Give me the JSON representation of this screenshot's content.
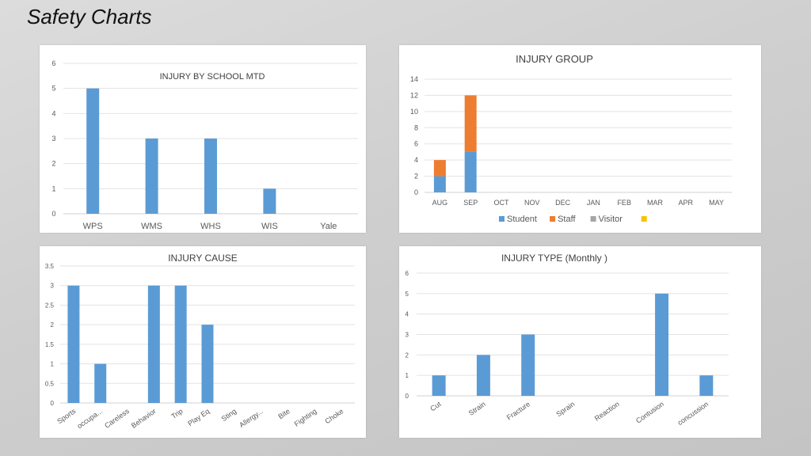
{
  "page": {
    "title": "Safety Charts"
  },
  "chart_data": [
    {
      "type": "bar",
      "title": "INJURY BY SCHOOL MTD",
      "categories": [
        "WPS",
        "WMS",
        "WHS",
        "WIS",
        "Yale"
      ],
      "values": [
        5,
        3,
        3,
        1,
        0
      ],
      "ylim": [
        0,
        6
      ],
      "yticks": [
        "0",
        "1",
        "2",
        "3",
        "4",
        "5",
        "6"
      ],
      "grid": true,
      "color": "#5b9bd5"
    },
    {
      "type": "bar",
      "stacked": true,
      "title": "INJURY GROUP",
      "categories": [
        "AUG",
        "SEP",
        "OCT",
        "NOV",
        "DEC",
        "JAN",
        "FEB",
        "MAR",
        "APR",
        "MAY"
      ],
      "series": [
        {
          "name": "Student",
          "color": "#5b9bd5",
          "values": [
            2,
            5,
            0,
            0,
            0,
            0,
            0,
            0,
            0,
            0
          ]
        },
        {
          "name": "Staff",
          "color": "#ed7d31",
          "values": [
            2,
            7,
            0,
            0,
            0,
            0,
            0,
            0,
            0,
            0
          ]
        },
        {
          "name": "Visitor",
          "color": "#a5a5a5",
          "values": [
            0,
            0,
            0,
            0,
            0,
            0,
            0,
            0,
            0,
            0
          ]
        },
        {
          "name": "",
          "color": "#ffc000",
          "values": [
            0,
            0,
            0,
            0,
            0,
            0,
            0,
            0,
            0,
            0
          ]
        }
      ],
      "ylim": [
        0,
        14
      ],
      "yticks": [
        "0",
        "2",
        "4",
        "6",
        "8",
        "10",
        "12",
        "14"
      ],
      "legend": "bottom",
      "grid": true
    },
    {
      "type": "bar",
      "title": "INJURY CAUSE",
      "categories": [
        "Sports",
        "occupa...",
        "Careless",
        "Behavior",
        "Trip",
        "Play Eq",
        "Sting",
        "Allergy...",
        "Bite",
        "Fighting",
        "Choke"
      ],
      "values": [
        3,
        1,
        0,
        3,
        3,
        2,
        0,
        0,
        0,
        0,
        0
      ],
      "ylim": [
        0,
        3.5
      ],
      "yticks": [
        "0",
        "0.5",
        "1",
        "1.5",
        "2",
        "2.5",
        "3",
        "3.5"
      ],
      "grid": true,
      "color": "#5b9bd5"
    },
    {
      "type": "bar",
      "title": "INJURY TYPE (Monthly )",
      "categories": [
        "Cut",
        "Strain",
        "Fracture",
        "Sprain",
        "Reaction",
        "Contusion",
        "concussion"
      ],
      "values": [
        1,
        2,
        3,
        0,
        0,
        5,
        1
      ],
      "ylim": [
        0,
        6
      ],
      "yticks": [
        "0",
        "1",
        "2",
        "3",
        "4",
        "5",
        "6"
      ],
      "grid": true,
      "color": "#5b9bd5"
    }
  ]
}
